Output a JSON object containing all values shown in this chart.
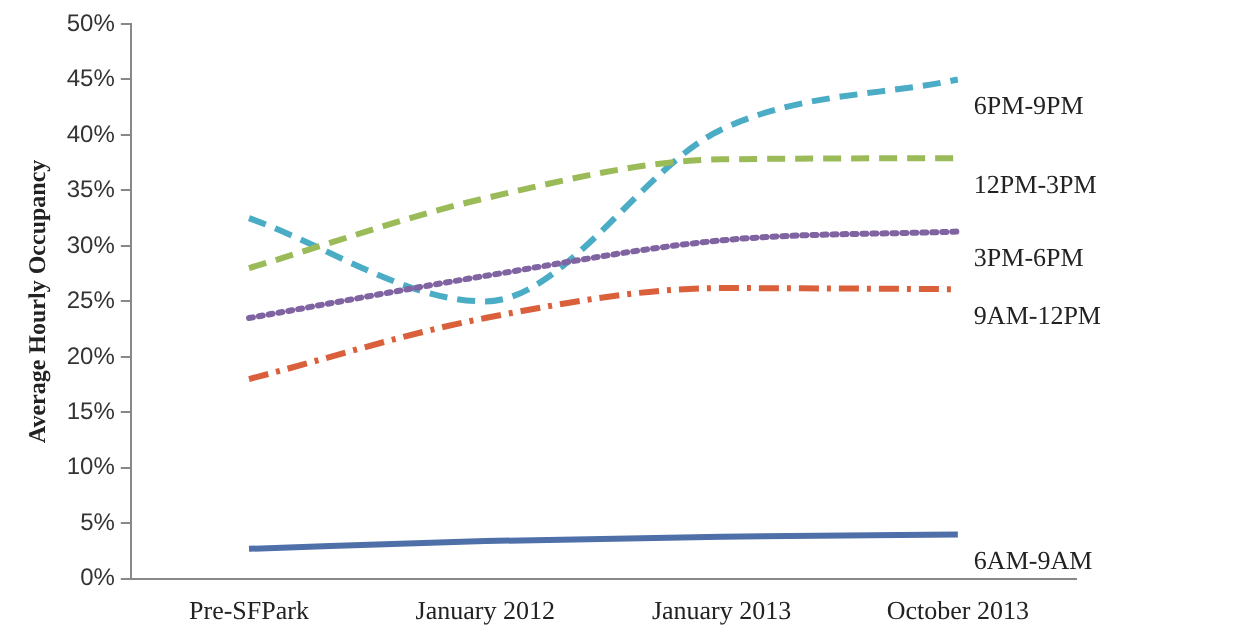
{
  "chart_data": {
    "type": "line",
    "ylabel": "Average Hourly Occupancy",
    "categories": [
      "Pre-SFPark",
      "January 2012",
      "January 2013",
      "October 2013"
    ],
    "ylim": [
      0,
      50
    ],
    "yticks": [
      {
        "value": 0,
        "label": "0%"
      },
      {
        "value": 5,
        "label": "5%"
      },
      {
        "value": 10,
        "label": "10%"
      },
      {
        "value": 15,
        "label": "15%"
      },
      {
        "value": 20,
        "label": "20%"
      },
      {
        "value": 25,
        "label": "25%"
      },
      {
        "value": 30,
        "label": "30%"
      },
      {
        "value": 35,
        "label": "35%"
      },
      {
        "value": 40,
        "label": "40%"
      },
      {
        "value": 45,
        "label": "45%"
      },
      {
        "value": 50,
        "label": "50%"
      }
    ],
    "grid": false,
    "legend": false,
    "marker": "none",
    "series": [
      {
        "name": "6AM-9AM",
        "color": "#4f6fa8",
        "line_style": "solid",
        "values": [
          2.7,
          3.4,
          3.8,
          4.0
        ]
      },
      {
        "name": "9AM-12PM",
        "color": "#d9603b",
        "line_style": "dashdot",
        "values": [
          18,
          23.5,
          26.2,
          26.1
        ]
      },
      {
        "name": "12PM-3PM",
        "color": "#9bbb59",
        "line_style": "dashed",
        "values": [
          28,
          34.3,
          37.8,
          37.9
        ]
      },
      {
        "name": "3PM-6PM",
        "color": "#8064a2",
        "line_style": "dotted",
        "values": [
          23.5,
          27.3,
          30.5,
          31.3
        ]
      },
      {
        "name": "6PM-9PM",
        "color": "#4bacc6",
        "line_style": "dashed",
        "values": [
          32.5,
          25,
          40.5,
          45
        ]
      }
    ]
  }
}
